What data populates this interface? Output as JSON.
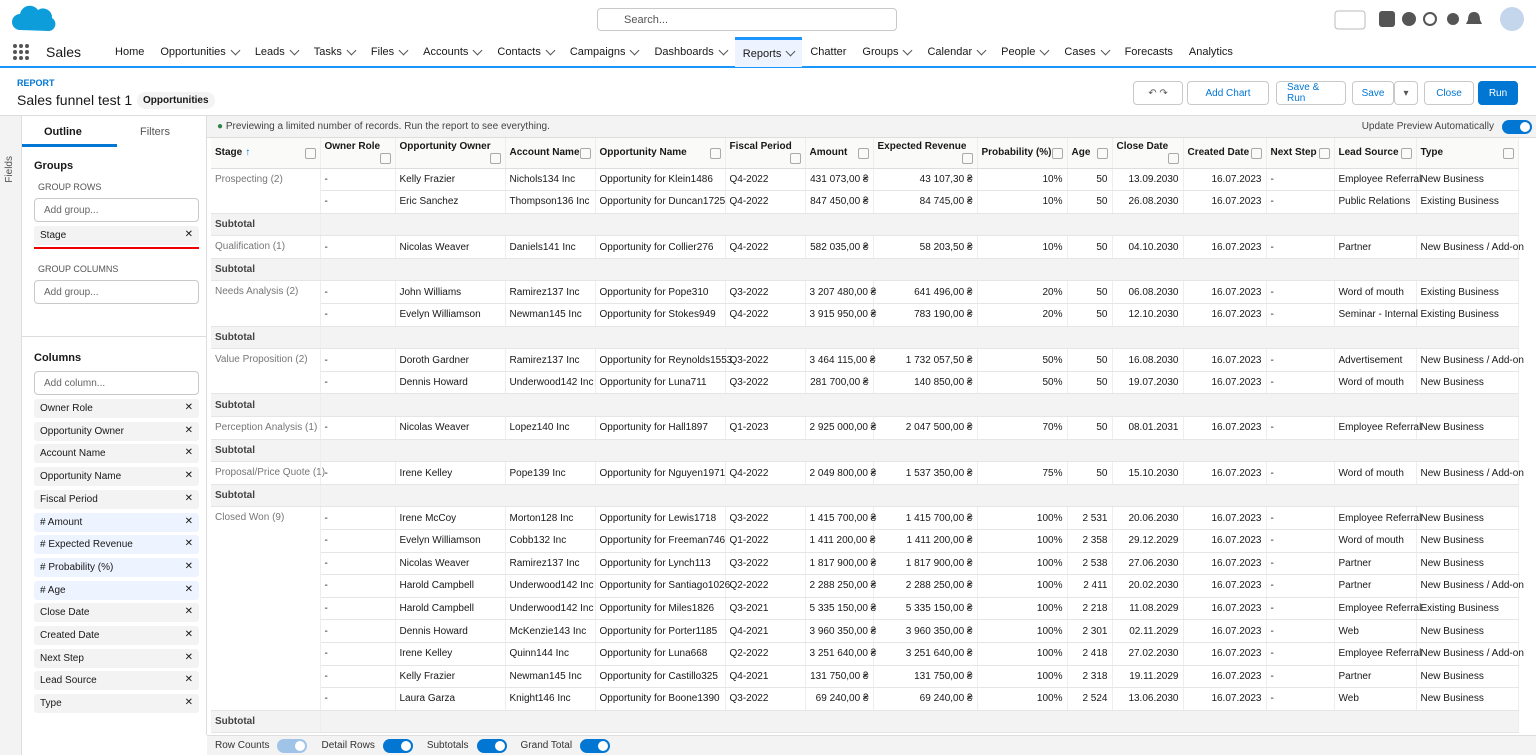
{
  "header": {
    "app": "Sales",
    "search": "Search...",
    "nav": [
      {
        "label": "Home",
        "menu": false
      },
      {
        "label": "Opportunities",
        "menu": true
      },
      {
        "label": "Leads",
        "menu": true
      },
      {
        "label": "Tasks",
        "menu": true
      },
      {
        "label": "Files",
        "menu": true
      },
      {
        "label": "Accounts",
        "menu": true
      },
      {
        "label": "Contacts",
        "menu": true
      },
      {
        "label": "Campaigns",
        "menu": true
      },
      {
        "label": "Dashboards",
        "menu": true
      },
      {
        "label": "Reports",
        "menu": true,
        "active": true
      },
      {
        "label": "Chatter",
        "menu": false
      },
      {
        "label": "Groups",
        "menu": true
      },
      {
        "label": "Calendar",
        "menu": true
      },
      {
        "label": "People",
        "menu": true
      },
      {
        "label": "Cases",
        "menu": true
      },
      {
        "label": "Forecasts",
        "menu": false
      },
      {
        "label": "Analytics",
        "menu": false
      }
    ]
  },
  "report": {
    "label": "REPORT",
    "title": "Sales funnel test 1",
    "type": "Opportunities",
    "buttons": [
      "Add Chart",
      "Save & Run",
      "Save",
      "Close",
      "Run"
    ]
  },
  "sidebar": {
    "fields_tab": "Fields",
    "tabs": [
      "Outline",
      "Filters"
    ],
    "groups_title": "Groups",
    "group_rows_label": "GROUP ROWS",
    "add_group": "Add group...",
    "group_rows": [
      "Stage"
    ],
    "group_columns_label": "GROUP COLUMNS",
    "add_group_columns": "Add group...",
    "columns_title": "Columns",
    "add_column": "Add column...",
    "columns": [
      "Owner Role",
      "Opportunity Owner",
      "Account Name",
      "Opportunity Name",
      "Fiscal Period",
      "# Amount",
      "# Expected Revenue",
      "# Probability (%)",
      "# Age",
      "Close Date",
      "Created Date",
      "Next Step",
      "Lead Source",
      "Type"
    ]
  },
  "preview": {
    "notice": "Previewing a limited number of records. Run the report to see everything.",
    "auto_update": "Update Preview Automatically"
  },
  "table": {
    "headers": [
      "Stage",
      "Owner Role",
      "Opportunity Owner",
      "Account Name",
      "Opportunity Name",
      "Fiscal Period",
      "Amount",
      "Expected Revenue",
      "Probability (%)",
      "Age",
      "Close Date",
      "Created Date",
      "Next Step",
      "Lead Source",
      "Type"
    ],
    "subtotal": "Subtotal",
    "groups": [
      {
        "label": "Prospecting (2)",
        "rows": [
          [
            "-",
            "Kelly Frazier",
            "Nichols134 Inc",
            "Opportunity for Klein1486",
            "Q4-2022",
            "431 073,00 ₴",
            "43 107,30 ₴",
            "10%",
            "50",
            "13.09.2030",
            "16.07.2023",
            "-",
            "Employee Referral",
            "New Business"
          ],
          [
            "-",
            "Eric Sanchez",
            "Thompson136 Inc",
            "Opportunity for Duncan1725",
            "Q4-2022",
            "847 450,00 ₴",
            "84 745,00 ₴",
            "10%",
            "50",
            "26.08.2030",
            "16.07.2023",
            "-",
            "Public Relations",
            "Existing Business"
          ]
        ]
      },
      {
        "label": "Qualification (1)",
        "rows": [
          [
            "-",
            "Nicolas Weaver",
            "Daniels141 Inc",
            "Opportunity for Collier276",
            "Q4-2022",
            "582 035,00 ₴",
            "58 203,50 ₴",
            "10%",
            "50",
            "04.10.2030",
            "16.07.2023",
            "-",
            "Partner",
            "New Business / Add-on"
          ]
        ]
      },
      {
        "label": "Needs Analysis (2)",
        "rows": [
          [
            "-",
            "John Williams",
            "Ramirez137 Inc",
            "Opportunity for Pope310",
            "Q3-2022",
            "3 207 480,00 ₴",
            "641 496,00 ₴",
            "20%",
            "50",
            "06.08.2030",
            "16.07.2023",
            "-",
            "Word of mouth",
            "Existing Business"
          ],
          [
            "-",
            "Evelyn Williamson",
            "Newman145 Inc",
            "Opportunity for Stokes949",
            "Q4-2022",
            "3 915 950,00 ₴",
            "783 190,00 ₴",
            "20%",
            "50",
            "12.10.2030",
            "16.07.2023",
            "-",
            "Seminar - Internal",
            "Existing Business"
          ]
        ]
      },
      {
        "label": "Value Proposition (2)",
        "rows": [
          [
            "-",
            "Doroth Gardner",
            "Ramirez137 Inc",
            "Opportunity for Reynolds1553",
            "Q3-2022",
            "3 464 115,00 ₴",
            "1 732 057,50 ₴",
            "50%",
            "50",
            "16.08.2030",
            "16.07.2023",
            "-",
            "Advertisement",
            "New Business / Add-on"
          ],
          [
            "-",
            "Dennis Howard",
            "Underwood142 Inc",
            "Opportunity for Luna711",
            "Q3-2022",
            "281 700,00 ₴",
            "140 850,00 ₴",
            "50%",
            "50",
            "19.07.2030",
            "16.07.2023",
            "-",
            "Word of mouth",
            "New Business"
          ]
        ]
      },
      {
        "label": "Perception Analysis (1)",
        "rows": [
          [
            "-",
            "Nicolas Weaver",
            "Lopez140 Inc",
            "Opportunity for Hall1897",
            "Q1-2023",
            "2 925 000,00 ₴",
            "2 047 500,00 ₴",
            "70%",
            "50",
            "08.01.2031",
            "16.07.2023",
            "-",
            "Employee Referral",
            "New Business"
          ]
        ]
      },
      {
        "label": "Proposal/Price Quote (1)",
        "rows": [
          [
            "-",
            "Irene Kelley",
            "Pope139 Inc",
            "Opportunity for Nguyen1971",
            "Q4-2022",
            "2 049 800,00 ₴",
            "1 537 350,00 ₴",
            "75%",
            "50",
            "15.10.2030",
            "16.07.2023",
            "-",
            "Word of mouth",
            "New Business / Add-on"
          ]
        ]
      },
      {
        "label": "Closed Won (9)",
        "rows": [
          [
            "-",
            "Irene McCoy",
            "Morton128 Inc",
            "Opportunity for Lewis1718",
            "Q3-2022",
            "1 415 700,00 ₴",
            "1 415 700,00 ₴",
            "100%",
            "2 531",
            "20.06.2030",
            "16.07.2023",
            "-",
            "Employee Referral",
            "New Business"
          ],
          [
            "-",
            "Evelyn Williamson",
            "Cobb132 Inc",
            "Opportunity for Freeman746",
            "Q1-2022",
            "1 411 200,00 ₴",
            "1 411 200,00 ₴",
            "100%",
            "2 358",
            "29.12.2029",
            "16.07.2023",
            "-",
            "Word of mouth",
            "New Business"
          ],
          [
            "-",
            "Nicolas Weaver",
            "Ramirez137 Inc",
            "Opportunity for Lynch113",
            "Q3-2022",
            "1 817 900,00 ₴",
            "1 817 900,00 ₴",
            "100%",
            "2 538",
            "27.06.2030",
            "16.07.2023",
            "-",
            "Partner",
            "New Business"
          ],
          [
            "-",
            "Harold Campbell",
            "Underwood142 Inc",
            "Opportunity for Santiago1026",
            "Q2-2022",
            "2 288 250,00 ₴",
            "2 288 250,00 ₴",
            "100%",
            "2 411",
            "20.02.2030",
            "16.07.2023",
            "-",
            "Partner",
            "New Business / Add-on"
          ],
          [
            "-",
            "Harold Campbell",
            "Underwood142 Inc",
            "Opportunity for Miles1826",
            "Q3-2021",
            "5 335 150,00 ₴",
            "5 335 150,00 ₴",
            "100%",
            "2 218",
            "11.08.2029",
            "16.07.2023",
            "-",
            "Employee Referral",
            "Existing Business"
          ],
          [
            "-",
            "Dennis Howard",
            "McKenzie143 Inc",
            "Opportunity for Porter1185",
            "Q4-2021",
            "3 960 350,00 ₴",
            "3 960 350,00 ₴",
            "100%",
            "2 301",
            "02.11.2029",
            "16.07.2023",
            "-",
            "Web",
            "New Business"
          ],
          [
            "-",
            "Irene Kelley",
            "Quinn144 Inc",
            "Opportunity for Luna668",
            "Q2-2022",
            "3 251 640,00 ₴",
            "3 251 640,00 ₴",
            "100%",
            "2 418",
            "27.02.2030",
            "16.07.2023",
            "-",
            "Employee Referral",
            "New Business / Add-on"
          ],
          [
            "-",
            "Kelly Frazier",
            "Newman145 Inc",
            "Opportunity for Castillo325",
            "Q4-2021",
            "131 750,00 ₴",
            "131 750,00 ₴",
            "100%",
            "2 318",
            "19.11.2029",
            "16.07.2023",
            "-",
            "Partner",
            "New Business"
          ],
          [
            "-",
            "Laura Garza",
            "Knight146 Inc",
            "Opportunity for Boone1390",
            "Q3-2022",
            "69 240,00 ₴",
            "69 240,00 ₴",
            "100%",
            "2 524",
            "13.06.2030",
            "16.07.2023",
            "-",
            "Web",
            "New Business"
          ]
        ]
      }
    ]
  },
  "footer": {
    "toggles": [
      "Row Counts",
      "Detail Rows",
      "Subtotals",
      "Grand Total"
    ]
  }
}
